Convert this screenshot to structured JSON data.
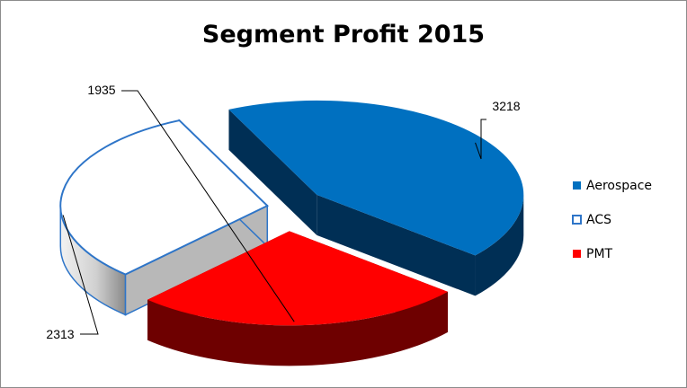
{
  "chart_data": {
    "type": "pie",
    "title": "Segment Profit 2015",
    "categories": [
      "Aerospace",
      "ACS",
      "PMT"
    ],
    "values": [
      3218,
      2313,
      1935
    ],
    "data_labels": [
      "3218",
      "2313",
      "1935"
    ],
    "legend_placement": "right",
    "exploded": true,
    "three_d": true,
    "colors": {
      "Aerospace": {
        "top": "#0070C0",
        "side": "#002F55"
      },
      "ACS": {
        "top": "#FFFFFF",
        "side": "#B8B8B8",
        "outline": "#2E75C8"
      },
      "PMT": {
        "top": "#FF0000",
        "side": "#6E0000"
      }
    }
  }
}
